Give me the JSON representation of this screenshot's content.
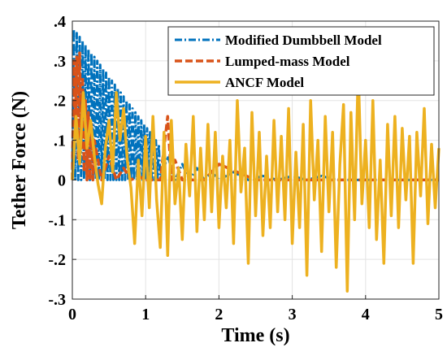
{
  "chart_data": {
    "type": "line",
    "title": "",
    "xlabel": "Time (s)",
    "ylabel": "Tether Force (N)",
    "xlim": [
      0,
      5
    ],
    "ylim": [
      -0.3,
      0.4
    ],
    "xticks": [
      0,
      1,
      2,
      3,
      4,
      5
    ],
    "yticks": [
      -0.3,
      -0.2,
      -0.1,
      0,
      0.1,
      0.2,
      0.3,
      0.4
    ],
    "grid": true,
    "legend_position": "top-right",
    "series": [
      {
        "name": "Modified Dumbbell Model",
        "color": "#0072BD",
        "style": "dashdot",
        "x": [
          0.0,
          0.02,
          0.04,
          0.06,
          0.08,
          0.1,
          0.12,
          0.14,
          0.16,
          0.18,
          0.2,
          0.22,
          0.24,
          0.26,
          0.28,
          0.3,
          0.32,
          0.34,
          0.36,
          0.38,
          0.4,
          0.42,
          0.44,
          0.46,
          0.48,
          0.5,
          0.52,
          0.54,
          0.56,
          0.58,
          0.6,
          0.62,
          0.64,
          0.66,
          0.68,
          0.7,
          0.72,
          0.74,
          0.76,
          0.78,
          0.8,
          0.82,
          0.84,
          0.86,
          0.88,
          0.9,
          0.92,
          0.94,
          0.96,
          0.98,
          1.0,
          1.02,
          1.04,
          1.06,
          1.08,
          1.1,
          1.12,
          1.14,
          1.16,
          1.18,
          1.2,
          1.3,
          1.4,
          1.5,
          1.6,
          1.7,
          1.8,
          1.9,
          2.0,
          2.2,
          2.4,
          2.6,
          2.8,
          3.0,
          3.2,
          3.4,
          3.6,
          3.8,
          4.0,
          4.5,
          5.0
        ],
        "y": [
          0.0,
          0.38,
          0.0,
          0.37,
          0.0,
          0.36,
          0.0,
          0.35,
          0.0,
          0.34,
          0.0,
          0.33,
          0.0,
          0.32,
          0.0,
          0.31,
          0.0,
          0.3,
          0.0,
          0.29,
          0.0,
          0.28,
          0.0,
          0.27,
          0.0,
          0.26,
          0.0,
          0.25,
          0.0,
          0.24,
          0.0,
          0.23,
          0.0,
          0.22,
          0.0,
          0.21,
          0.0,
          0.2,
          0.0,
          0.19,
          0.0,
          0.18,
          0.0,
          0.17,
          0.0,
          0.16,
          0.0,
          0.15,
          0.0,
          0.14,
          0.0,
          0.13,
          0.0,
          0.12,
          0.0,
          0.11,
          0.0,
          0.1,
          0.0,
          0.09,
          0.0,
          0.06,
          0.0,
          0.04,
          0.0,
          0.03,
          0.0,
          0.02,
          0.0,
          0.02,
          0.0,
          0.01,
          0.0,
          0.01,
          0.0,
          0.01,
          0.0,
          0.0,
          0.0,
          0.0,
          0.0
        ]
      },
      {
        "name": "Lumped-mass Model",
        "color": "#D95319",
        "style": "dashed",
        "x": [
          0.0,
          0.02,
          0.04,
          0.06,
          0.08,
          0.1,
          0.12,
          0.14,
          0.16,
          0.18,
          0.2,
          0.22,
          0.24,
          0.26,
          0.28,
          0.3,
          0.4,
          0.5,
          0.6,
          0.7,
          0.8,
          0.9,
          1.0,
          1.1,
          1.2,
          1.3,
          1.35,
          1.4,
          1.5,
          1.6,
          1.8,
          2.0,
          2.5,
          2.8,
          3.0,
          3.5,
          4.0,
          4.5,
          5.0
        ],
        "y": [
          0.0,
          0.3,
          0.12,
          0.31,
          0.05,
          0.32,
          0.08,
          0.26,
          0.02,
          0.2,
          0.0,
          0.17,
          0.0,
          0.14,
          0.0,
          0.1,
          0.0,
          0.06,
          0.0,
          0.03,
          0.0,
          0.01,
          0.0,
          0.0,
          0.0,
          0.16,
          0.0,
          0.05,
          0.0,
          0.0,
          0.0,
          0.04,
          0.0,
          0.0,
          0.0,
          0.0,
          0.0,
          0.0,
          0.0
        ]
      },
      {
        "name": "ANCF Model",
        "color": "#EDB120",
        "style": "solid",
        "x": [
          0.0,
          0.05,
          0.1,
          0.15,
          0.2,
          0.25,
          0.3,
          0.35,
          0.4,
          0.45,
          0.5,
          0.55,
          0.6,
          0.65,
          0.7,
          0.75,
          0.8,
          0.85,
          0.9,
          0.95,
          1.0,
          1.05,
          1.1,
          1.15,
          1.2,
          1.25,
          1.3,
          1.35,
          1.4,
          1.45,
          1.5,
          1.55,
          1.6,
          1.65,
          1.7,
          1.75,
          1.8,
          1.85,
          1.9,
          1.95,
          2.0,
          2.05,
          2.1,
          2.15,
          2.2,
          2.25,
          2.3,
          2.35,
          2.4,
          2.45,
          2.5,
          2.55,
          2.6,
          2.65,
          2.7,
          2.75,
          2.8,
          2.85,
          2.9,
          2.95,
          3.0,
          3.05,
          3.1,
          3.15,
          3.2,
          3.25,
          3.3,
          3.35,
          3.4,
          3.45,
          3.5,
          3.55,
          3.6,
          3.65,
          3.7,
          3.75,
          3.8,
          3.85,
          3.9,
          3.95,
          4.0,
          4.05,
          4.1,
          4.15,
          4.2,
          4.25,
          4.3,
          4.35,
          4.4,
          4.45,
          4.5,
          4.55,
          4.6,
          4.65,
          4.7,
          4.75,
          4.8,
          4.85,
          4.9,
          4.95,
          5.0
        ],
        "y": [
          0.0,
          0.16,
          0.04,
          0.22,
          0.08,
          0.15,
          0.06,
          -0.01,
          -0.06,
          0.08,
          0.15,
          0.02,
          0.22,
          0.1,
          0.18,
          0.05,
          -0.02,
          -0.16,
          0.05,
          -0.09,
          0.11,
          -0.07,
          0.16,
          -0.05,
          -0.17,
          0.12,
          -0.19,
          0.15,
          -0.06,
          0.03,
          -0.15,
          0.09,
          -0.04,
          0.16,
          -0.13,
          0.08,
          -0.1,
          0.14,
          -0.08,
          0.12,
          -0.12,
          0.06,
          -0.07,
          0.1,
          -0.16,
          0.2,
          -0.03,
          0.08,
          -0.21,
          0.17,
          -0.09,
          0.12,
          -0.14,
          0.06,
          -0.12,
          0.15,
          -0.08,
          0.11,
          -0.1,
          0.18,
          -0.16,
          0.07,
          -0.12,
          0.14,
          -0.24,
          0.2,
          -0.05,
          0.1,
          -0.18,
          0.16,
          -0.08,
          0.12,
          -0.22,
          0.04,
          0.19,
          -0.28,
          0.17,
          -0.1,
          0.28,
          -0.06,
          0.1,
          -0.12,
          0.2,
          -0.15,
          0.05,
          -0.21,
          0.14,
          -0.09,
          0.16,
          -0.12,
          0.13,
          -0.05,
          0.11,
          -0.21,
          0.12,
          -0.04,
          0.18,
          -0.11,
          0.09,
          -0.07,
          0.08
        ]
      }
    ]
  }
}
